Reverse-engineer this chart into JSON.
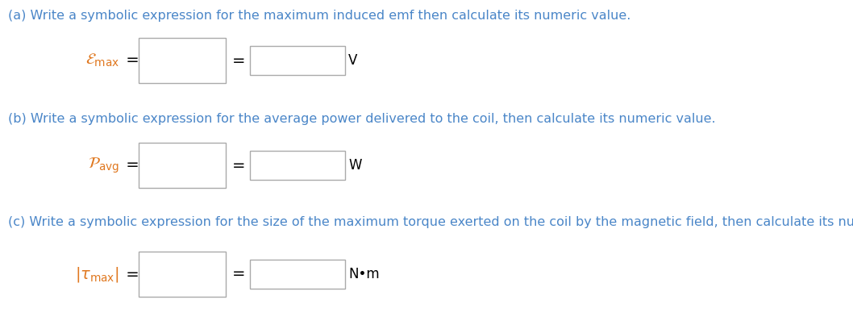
{
  "bg_color": "#ffffff",
  "text_color": "#4a86c8",
  "label_color": "#e07820",
  "part_a_text": "(a) Write a symbolic expression for the maximum induced emf then calculate its numeric value.",
  "part_b_text": "(b) Write a symbolic expression for the average power delivered to the coil, then calculate its numeric value.",
  "part_c_text": "(c) Write a symbolic expression for the size of the maximum torque exerted on the coil by the magnetic field, then calculate its numeric value.",
  "unit_a": "V",
  "unit_b": "W",
  "unit_c": "N•m",
  "box_facecolor": "#ffffff",
  "box_edgecolor": "#aaaaaa",
  "font_size_text": 11.5,
  "font_size_label": 14,
  "font_size_unit": 12
}
